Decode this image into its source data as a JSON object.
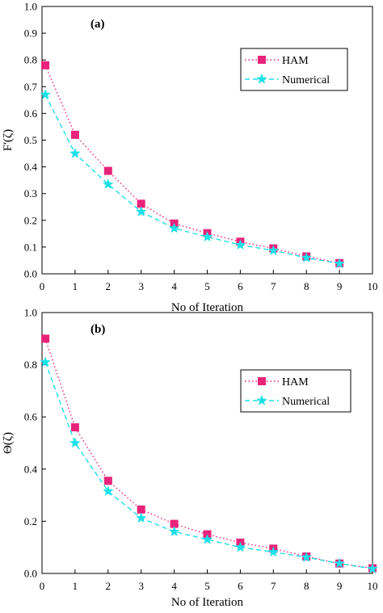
{
  "chart_data": [
    {
      "type": "line",
      "panel_label": "(a)",
      "xlabel": "No of Iteration",
      "ylabel": "F'(ζ)",
      "xlim": [
        0,
        10
      ],
      "ylim": [
        0,
        1.0
      ],
      "xticks": [
        "0",
        "1",
        "2",
        "3",
        "4",
        "5",
        "6",
        "7",
        "8",
        "9",
        "10"
      ],
      "yticks": [
        "0.0",
        "0.1",
        "0.2",
        "0.3",
        "0.4",
        "0.5",
        "0.6",
        "0.7",
        "0.8",
        "0.9",
        "1.0"
      ],
      "legend_position": "top-right",
      "grid": false,
      "series": [
        {
          "name": "HAM",
          "color": "#e8237a",
          "marker": "square",
          "line_style": "dotted",
          "x": [
            0.1,
            1,
            2,
            3,
            4,
            5,
            6,
            7,
            8,
            9
          ],
          "values": [
            0.78,
            0.52,
            0.385,
            0.262,
            0.188,
            0.152,
            0.12,
            0.095,
            0.065,
            0.04
          ]
        },
        {
          "name": "Numerical",
          "color": "#1de0e8",
          "marker": "star",
          "line_style": "dashed",
          "x": [
            0.1,
            1,
            2,
            3,
            4,
            5,
            6,
            7,
            8,
            9
          ],
          "values": [
            0.67,
            0.45,
            0.335,
            0.232,
            0.17,
            0.138,
            0.108,
            0.087,
            0.06,
            0.038
          ]
        }
      ]
    },
    {
      "type": "line",
      "panel_label": "(b)",
      "xlabel": "No of Iteration",
      "ylabel": "Θ(ζ)",
      "xlim": [
        0,
        10
      ],
      "ylim": [
        0,
        1.0
      ],
      "xticks": [
        "0",
        "1",
        "2",
        "3",
        "4",
        "5",
        "6",
        "7",
        "8",
        "9",
        "10"
      ],
      "yticks": [
        "0.0",
        "0.2",
        "0.4",
        "0.6",
        "0.8",
        "1.0"
      ],
      "legend_position": "top-right",
      "grid": false,
      "series": [
        {
          "name": "HAM",
          "color": "#e8237a",
          "marker": "square",
          "line_style": "dotted",
          "x": [
            0.1,
            1,
            2,
            3,
            4,
            5,
            6,
            7,
            8,
            9,
            10
          ],
          "values": [
            0.9,
            0.56,
            0.355,
            0.245,
            0.19,
            0.15,
            0.118,
            0.095,
            0.065,
            0.038,
            0.02
          ]
        },
        {
          "name": "Numerical",
          "color": "#1de0e8",
          "marker": "star",
          "line_style": "dashed",
          "x": [
            0.1,
            1,
            2,
            3,
            4,
            5,
            6,
            7,
            8,
            9,
            10
          ],
          "values": [
            0.81,
            0.5,
            0.315,
            0.212,
            0.16,
            0.13,
            0.1,
            0.082,
            0.062,
            0.038,
            0.018
          ]
        }
      ]
    }
  ]
}
